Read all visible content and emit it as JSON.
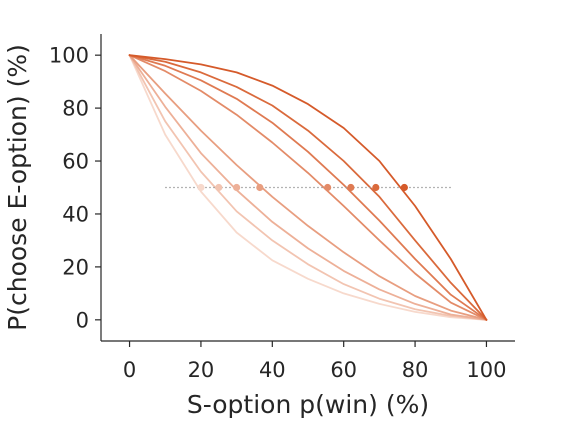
{
  "chart_data": {
    "type": "line",
    "xlabel": "S-option p(win) (%)",
    "ylabel": "P(choose E-option) (%)",
    "xlim": [
      -8,
      108
    ],
    "ylim": [
      -8,
      108
    ],
    "xticks": [
      0,
      20,
      40,
      60,
      80,
      100
    ],
    "yticks": [
      0,
      20,
      40,
      60,
      80,
      100
    ],
    "x": [
      0,
      10,
      20,
      30,
      40,
      50,
      60,
      70,
      80,
      90,
      100
    ],
    "series": [
      {
        "color": "#d55a2a",
        "values": [
          100,
          98.5,
          96.5,
          93.5,
          88.5,
          81.5,
          72.5,
          60,
          43,
          23,
          0
        ]
      },
      {
        "color": "#da6a3c",
        "values": [
          100,
          97.5,
          93.5,
          88,
          81,
          71.5,
          60,
          46.5,
          30,
          14,
          0
        ]
      },
      {
        "color": "#df7a52",
        "values": [
          100,
          96,
          90.5,
          83.5,
          74.5,
          63.5,
          51,
          37.5,
          23,
          9.5,
          0
        ]
      },
      {
        "color": "#e38b68",
        "values": [
          100,
          94,
          86.5,
          77.5,
          67,
          55.5,
          43,
          30,
          17.5,
          6.5,
          0
        ]
      },
      {
        "color": "#e89e80",
        "values": [
          100,
          85.5,
          71.5,
          58.5,
          46.5,
          35.5,
          25.5,
          16.5,
          9,
          3.5,
          0
        ]
      },
      {
        "color": "#edb098",
        "values": [
          100,
          80.5,
          63,
          49,
          37,
          27,
          18.5,
          11.5,
          6,
          2,
          0
        ]
      },
      {
        "color": "#f2c4b1",
        "values": [
          100,
          75,
          56,
          41,
          30,
          21,
          13.5,
          8,
          4,
          1.5,
          0
        ]
      },
      {
        "color": "#f7d9cc",
        "values": [
          100,
          70,
          48.5,
          33,
          22.5,
          15.5,
          10,
          6,
          3,
          1,
          0
        ]
      }
    ],
    "reference_line": {
      "y": 50,
      "x_range": [
        10,
        90
      ],
      "color": "#999999",
      "style": "dotted"
    },
    "indifference_points": [
      {
        "x": 77,
        "y": 50,
        "color": "#d55a2a"
      },
      {
        "x": 69,
        "y": 50,
        "color": "#da6a3c"
      },
      {
        "x": 62,
        "y": 50,
        "color": "#df7a52"
      },
      {
        "x": 55.5,
        "y": 50,
        "color": "#e38b68"
      },
      {
        "x": 36.5,
        "y": 50,
        "color": "#e89e80"
      },
      {
        "x": 30,
        "y": 50,
        "color": "#edb098"
      },
      {
        "x": 25,
        "y": 50,
        "color": "#f2c4b1"
      },
      {
        "x": 20,
        "y": 50,
        "color": "#f7d9cc"
      }
    ],
    "grid": false,
    "legend": "none"
  }
}
